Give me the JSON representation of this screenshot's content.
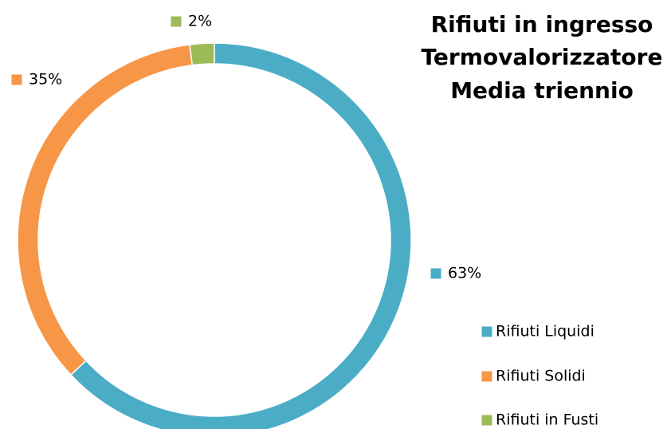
{
  "chart_data": {
    "type": "donut",
    "title": [
      "Rifiuti in ingresso",
      "Termovalorizzatore",
      "Media triennio"
    ],
    "categories": [
      "Rifiuti Liquidi",
      "Rifiuti Solidi",
      "Rifiuti in Fusti"
    ],
    "values": [
      63,
      35,
      2
    ],
    "value_labels": [
      "63%",
      "35%",
      "2%"
    ],
    "colors": [
      "#4bacc6",
      "#f79646",
      "#9bbb59"
    ],
    "legend": "right"
  }
}
